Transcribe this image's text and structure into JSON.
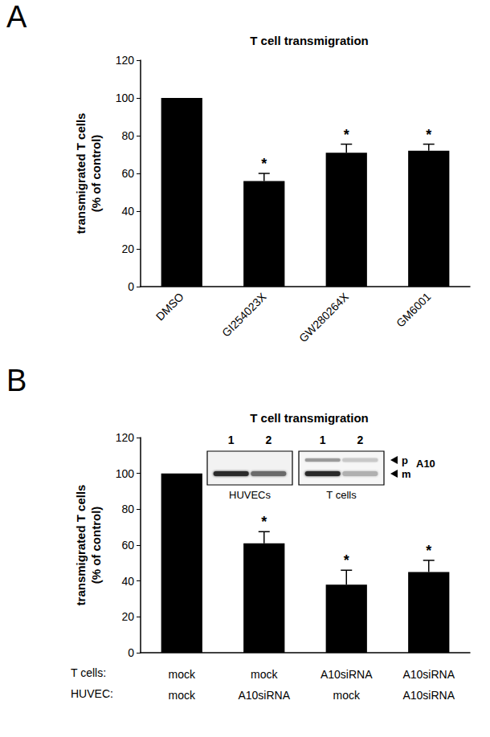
{
  "chart_data": [
    {
      "type": "bar",
      "panel_label": "A",
      "title": "T cell transmigration",
      "y_label": "transmigrated T cells\n(% of control)",
      "categories": [
        "DMSO",
        "GI254023X",
        "GW280264X",
        "GM6001"
      ],
      "values": [
        100,
        56,
        71,
        72
      ],
      "errors": [
        0,
        4,
        4.5,
        3.5
      ],
      "significance": [
        null,
        "*",
        "*",
        "*"
      ],
      "color": "#000000",
      "ylim": [
        0,
        120
      ],
      "yticks": [
        0,
        20,
        40,
        60,
        80,
        100,
        120
      ],
      "grid": false
    },
    {
      "type": "bar",
      "panel_label": "B",
      "title": "T cell transmigration",
      "y_label": "transmigrated T cells\n(% of control)",
      "category_rows": [
        {
          "label": "T cells:",
          "values": [
            "mock",
            "mock",
            "A10siRNA",
            "A10siRNA"
          ]
        },
        {
          "label": "HUVEC:",
          "values": [
            "mock",
            "A10siRNA",
            "mock",
            "A10siRNA"
          ]
        }
      ],
      "values": [
        100,
        61,
        38,
        45
      ],
      "errors": [
        0,
        6.5,
        8,
        6.5
      ],
      "significance": [
        null,
        "*",
        "*",
        "*"
      ],
      "color": "#000000",
      "ylim": [
        0,
        120
      ],
      "yticks": [
        0,
        20,
        40,
        60,
        80,
        100,
        120
      ],
      "grid": false,
      "inset": {
        "blots": [
          {
            "label": "HUVECs",
            "lanes": [
              "1",
              "2"
            ]
          },
          {
            "label": "T cells",
            "lanes": [
              "1",
              "2"
            ]
          }
        ],
        "bands": [
          "p",
          "m"
        ],
        "protein": "A10"
      }
    }
  ]
}
